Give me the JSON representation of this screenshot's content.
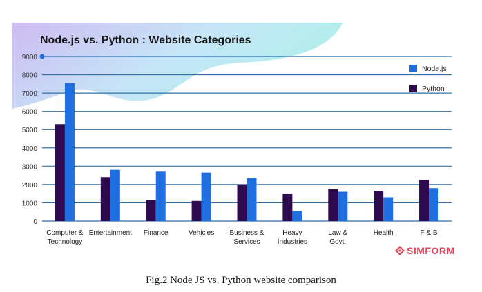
{
  "chart_data": {
    "type": "bar",
    "title": "Node.js vs. Python : Website Categories",
    "categories": [
      "Computer & Technology",
      "Entertainment",
      "Finance",
      "Vehicles",
      "Business & Services",
      "Heavy Industries",
      "Law & Govt.",
      "Health",
      "F & B"
    ],
    "category_lines": [
      [
        "Computer &",
        "Technology"
      ],
      [
        "Entertainment"
      ],
      [
        "Finance"
      ],
      [
        "Vehicles"
      ],
      [
        "Business &",
        "Services"
      ],
      [
        "Heavy",
        "Industries"
      ],
      [
        "Law &",
        "Govt."
      ],
      [
        "Health"
      ],
      [
        "F & B"
      ]
    ],
    "series": [
      {
        "name": "Python",
        "values": [
          5300,
          2400,
          1150,
          1100,
          2000,
          1500,
          1750,
          1650,
          2250
        ],
        "color": "#2d0b4e"
      },
      {
        "name": "Node.js",
        "values": [
          7550,
          2800,
          2700,
          2650,
          2350,
          550,
          1600,
          1300,
          1800
        ],
        "color": "#1f6fe0"
      }
    ],
    "ylim": [
      0,
      9000
    ],
    "yticks": [
      0,
      1000,
      2000,
      3000,
      4000,
      5000,
      6000,
      7000,
      8000,
      9000
    ],
    "legend": [
      "Node.js",
      "Python"
    ],
    "legend_position": "top-right",
    "grid": true
  },
  "brand": {
    "name": "SIMFORM",
    "color": "#e0455c"
  },
  "caption": "Fig.2 Node JS vs. Python website comparison"
}
